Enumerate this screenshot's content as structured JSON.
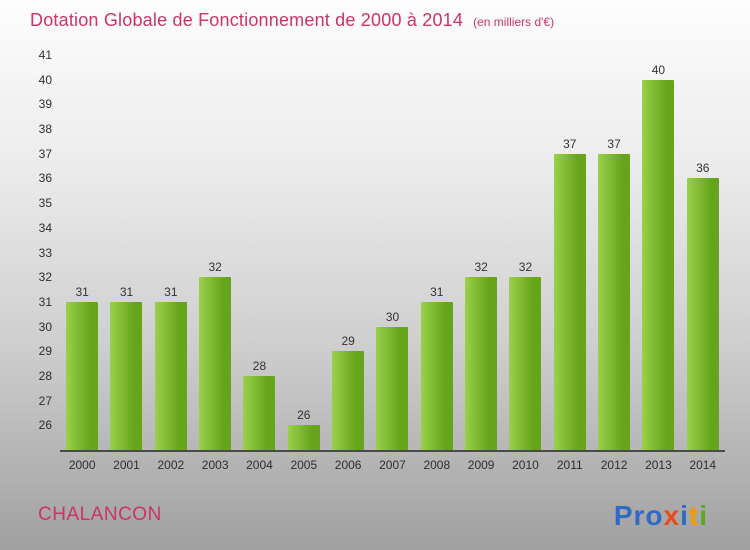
{
  "header": {
    "title": "Dotation Globale de Fonctionnement de 2000 à 2014",
    "subtitle": "(en milliers d'€)"
  },
  "footer": {
    "commune": "CHALANCON",
    "logo_text": "Proxiti",
    "logo_letters": [
      {
        "ch": "P",
        "color": "#2f6ac5"
      },
      {
        "ch": "r",
        "color": "#2f6ac5"
      },
      {
        "ch": "o",
        "color": "#2f6ac5"
      },
      {
        "ch": "x",
        "color": "#e8491d"
      },
      {
        "ch": "i",
        "color": "#2f6ac5"
      },
      {
        "ch": "t",
        "color": "#f59a00"
      },
      {
        "ch": "i",
        "color": "#5aaa1a"
      }
    ]
  },
  "colors": {
    "title": "#cc3366",
    "bar_light": "#9bd04c",
    "bar_dark": "#66a51b",
    "axis": "#4a4a4a"
  },
  "chart_data": {
    "type": "bar",
    "title": "Dotation Globale de Fonctionnement de 2000 à 2014",
    "subtitle": "(en milliers d'€)",
    "unit": "milliers d'€",
    "categories": [
      "2000",
      "2001",
      "2002",
      "2003",
      "2004",
      "2005",
      "2006",
      "2007",
      "2008",
      "2009",
      "2010",
      "2011",
      "2012",
      "2013",
      "2014"
    ],
    "values": [
      31,
      31,
      31,
      32,
      28,
      26,
      29,
      30,
      31,
      32,
      32,
      37,
      37,
      40,
      36
    ],
    "xlabel": "",
    "ylabel": "",
    "ylim": [
      25,
      41
    ],
    "yticks": [
      26,
      27,
      28,
      29,
      30,
      31,
      32,
      33,
      34,
      35,
      36,
      37,
      38,
      39,
      40,
      41
    ],
    "grid": false,
    "legend": false,
    "value_labels": true
  }
}
